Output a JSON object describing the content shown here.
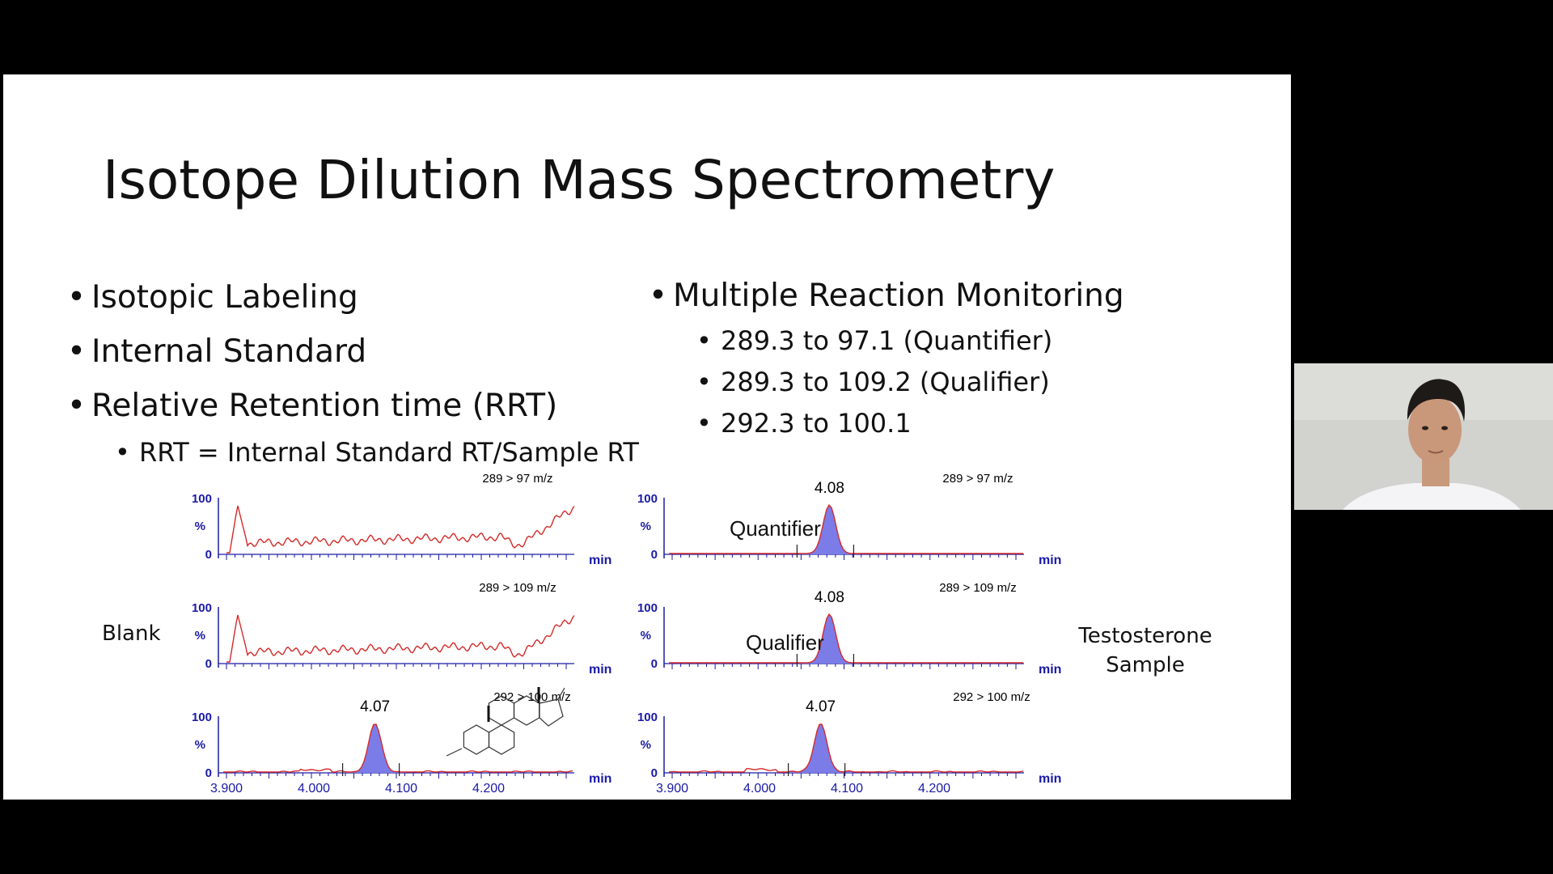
{
  "slide": {
    "title": "Isotope Dilution Mass Spectrometry",
    "bullets_left": [
      {
        "text": "Isotopic Labeling"
      },
      {
        "text": "Internal Standard"
      },
      {
        "text": "Relative Retention time (RRT)"
      }
    ],
    "sub_bullet_left": "RRT = Internal Standard RT/Sample RT",
    "bullet_right": "Multiple Reaction Monitoring",
    "sub_bullets_right": [
      "289.3 to 97.1 (Quantifier)",
      "289.3 to 109.2 (Qualifier)",
      "292.3 to 100.1"
    ],
    "side_label_left": "Blank",
    "side_label_right_1": "Testosterone",
    "side_label_right_2": "Sample"
  },
  "chart_data": [
    {
      "type": "line",
      "panel": "blank-1",
      "transition": "289 > 97 m/z",
      "yticks": [
        "100",
        "%",
        "0"
      ],
      "xunit": "min"
    },
    {
      "type": "line",
      "panel": "blank-2",
      "transition": "289 > 109 m/z",
      "yticks": [
        "100",
        "%",
        "0"
      ],
      "xunit": "min"
    },
    {
      "type": "line",
      "panel": "blank-3",
      "transition": "292 > 100 m/z",
      "peak_label": "4.07",
      "peak_x": 4.07,
      "yticks": [
        "100",
        "%",
        "0"
      ],
      "xunit": "min",
      "xticks": [
        "3.900",
        "4.000",
        "4.100",
        "4.200"
      ]
    },
    {
      "type": "line",
      "panel": "sample-1",
      "transition": "289 > 97 m/z",
      "peak_label": "4.08",
      "peak_x": 4.08,
      "annotation": "Quantifier",
      "yticks": [
        "100",
        "%",
        "0"
      ],
      "xunit": "min"
    },
    {
      "type": "line",
      "panel": "sample-2",
      "transition": "289 > 109 m/z",
      "peak_label": "4.08",
      "peak_x": 4.08,
      "annotation": "Qualifier",
      "yticks": [
        "100",
        "%",
        "0"
      ],
      "xunit": "min"
    },
    {
      "type": "line",
      "panel": "sample-3",
      "transition": "292 > 100 m/z",
      "peak_label": "4.07",
      "peak_x": 4.07,
      "yticks": [
        "100",
        "%",
        "0"
      ],
      "xunit": "min",
      "xticks": [
        "3.900",
        "4.000",
        "4.100",
        "4.200"
      ]
    }
  ],
  "colors": {
    "trace": "#d42a2a",
    "peak_fill": "#7c7ce8",
    "axis": "#1a1aa6"
  }
}
